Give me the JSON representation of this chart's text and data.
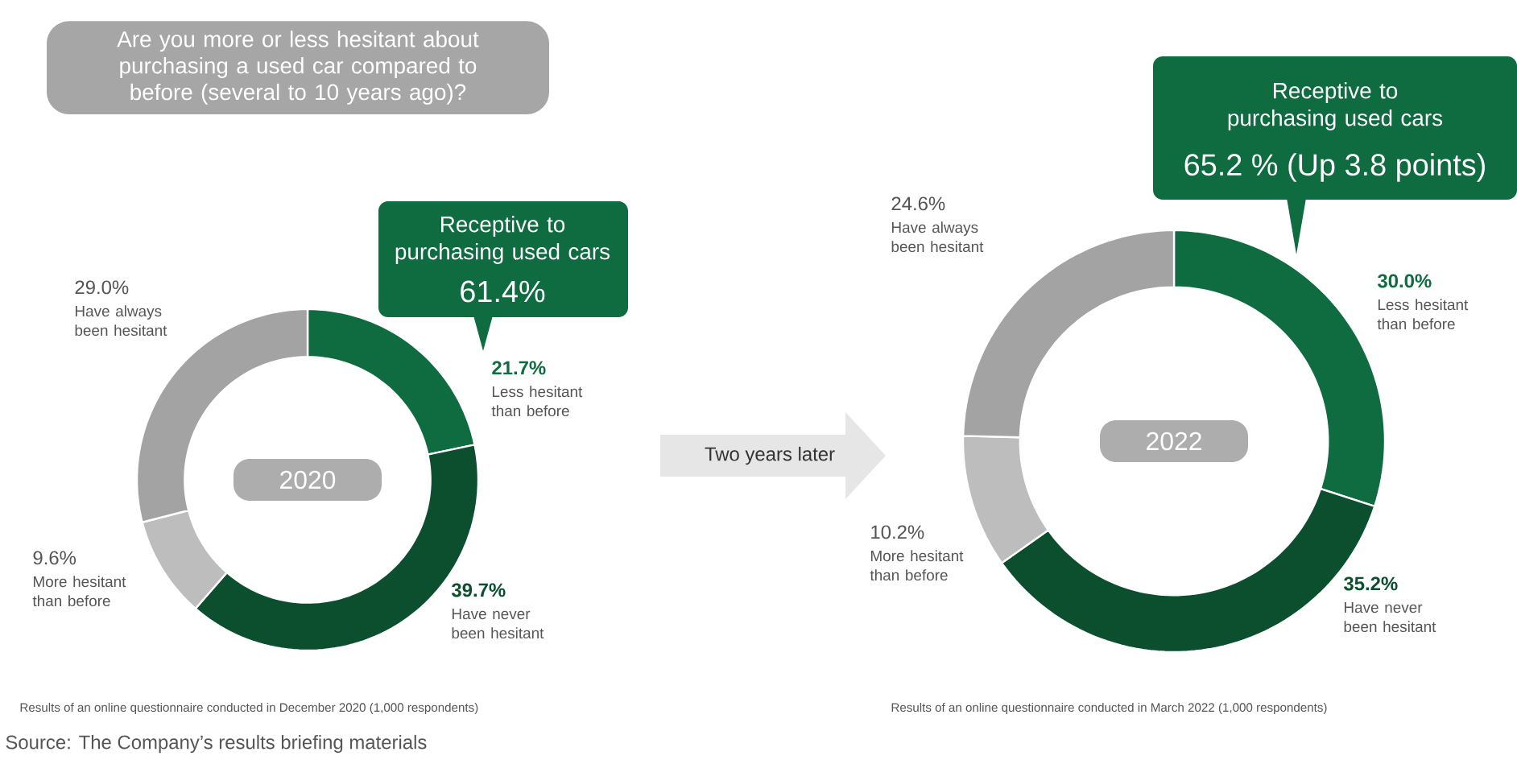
{
  "chart_data": [
    {
      "type": "donut",
      "title": "Are you more or less hesitant about purchasing a used car compared to before (several to 10 years ago)?",
      "categories": [
        "Less hesitant than before",
        "Have never been hesitant",
        "More hesitant than before",
        "Have always been hesitant"
      ],
      "values": [
        21.7,
        39.7,
        9.6,
        29.0
      ],
      "value_labels": [
        "21.7%",
        "39.7%",
        "9.6%",
        "29.0%"
      ],
      "colors": [
        "#0f6b40",
        "#0b4f2f",
        "#bdbdbd",
        "#a3a3a3"
      ],
      "annotations": [
        "2020",
        "Receptive to purchasing used cars",
        "61.4%",
        "Results of an online questionnaire conducted in December 2020 (1,000 respondents)",
        "Source: The Company’s results briefing materials"
      ]
    },
    {
      "type": "donut",
      "categories": [
        "Less hesitant than before",
        "Have never been hesitant",
        "More hesitant than before",
        "Have always been hesitant"
      ],
      "values": [
        30.0,
        35.2,
        10.2,
        24.6
      ],
      "value_labels": [
        "30.0%",
        "35.2%",
        "10.2%",
        "24.6%"
      ],
      "colors": [
        "#0f6b40",
        "#0b4f2f",
        "#bdbdbd",
        "#a3a3a3"
      ],
      "annotations": [
        "Two years later",
        "2022",
        "Receptive to purchasing used cars",
        "65.2 % (Up 3.8 points)",
        "Results of an online questionnaire conducted in March 2022 (1,000 respondents)"
      ]
    }
  ]
}
